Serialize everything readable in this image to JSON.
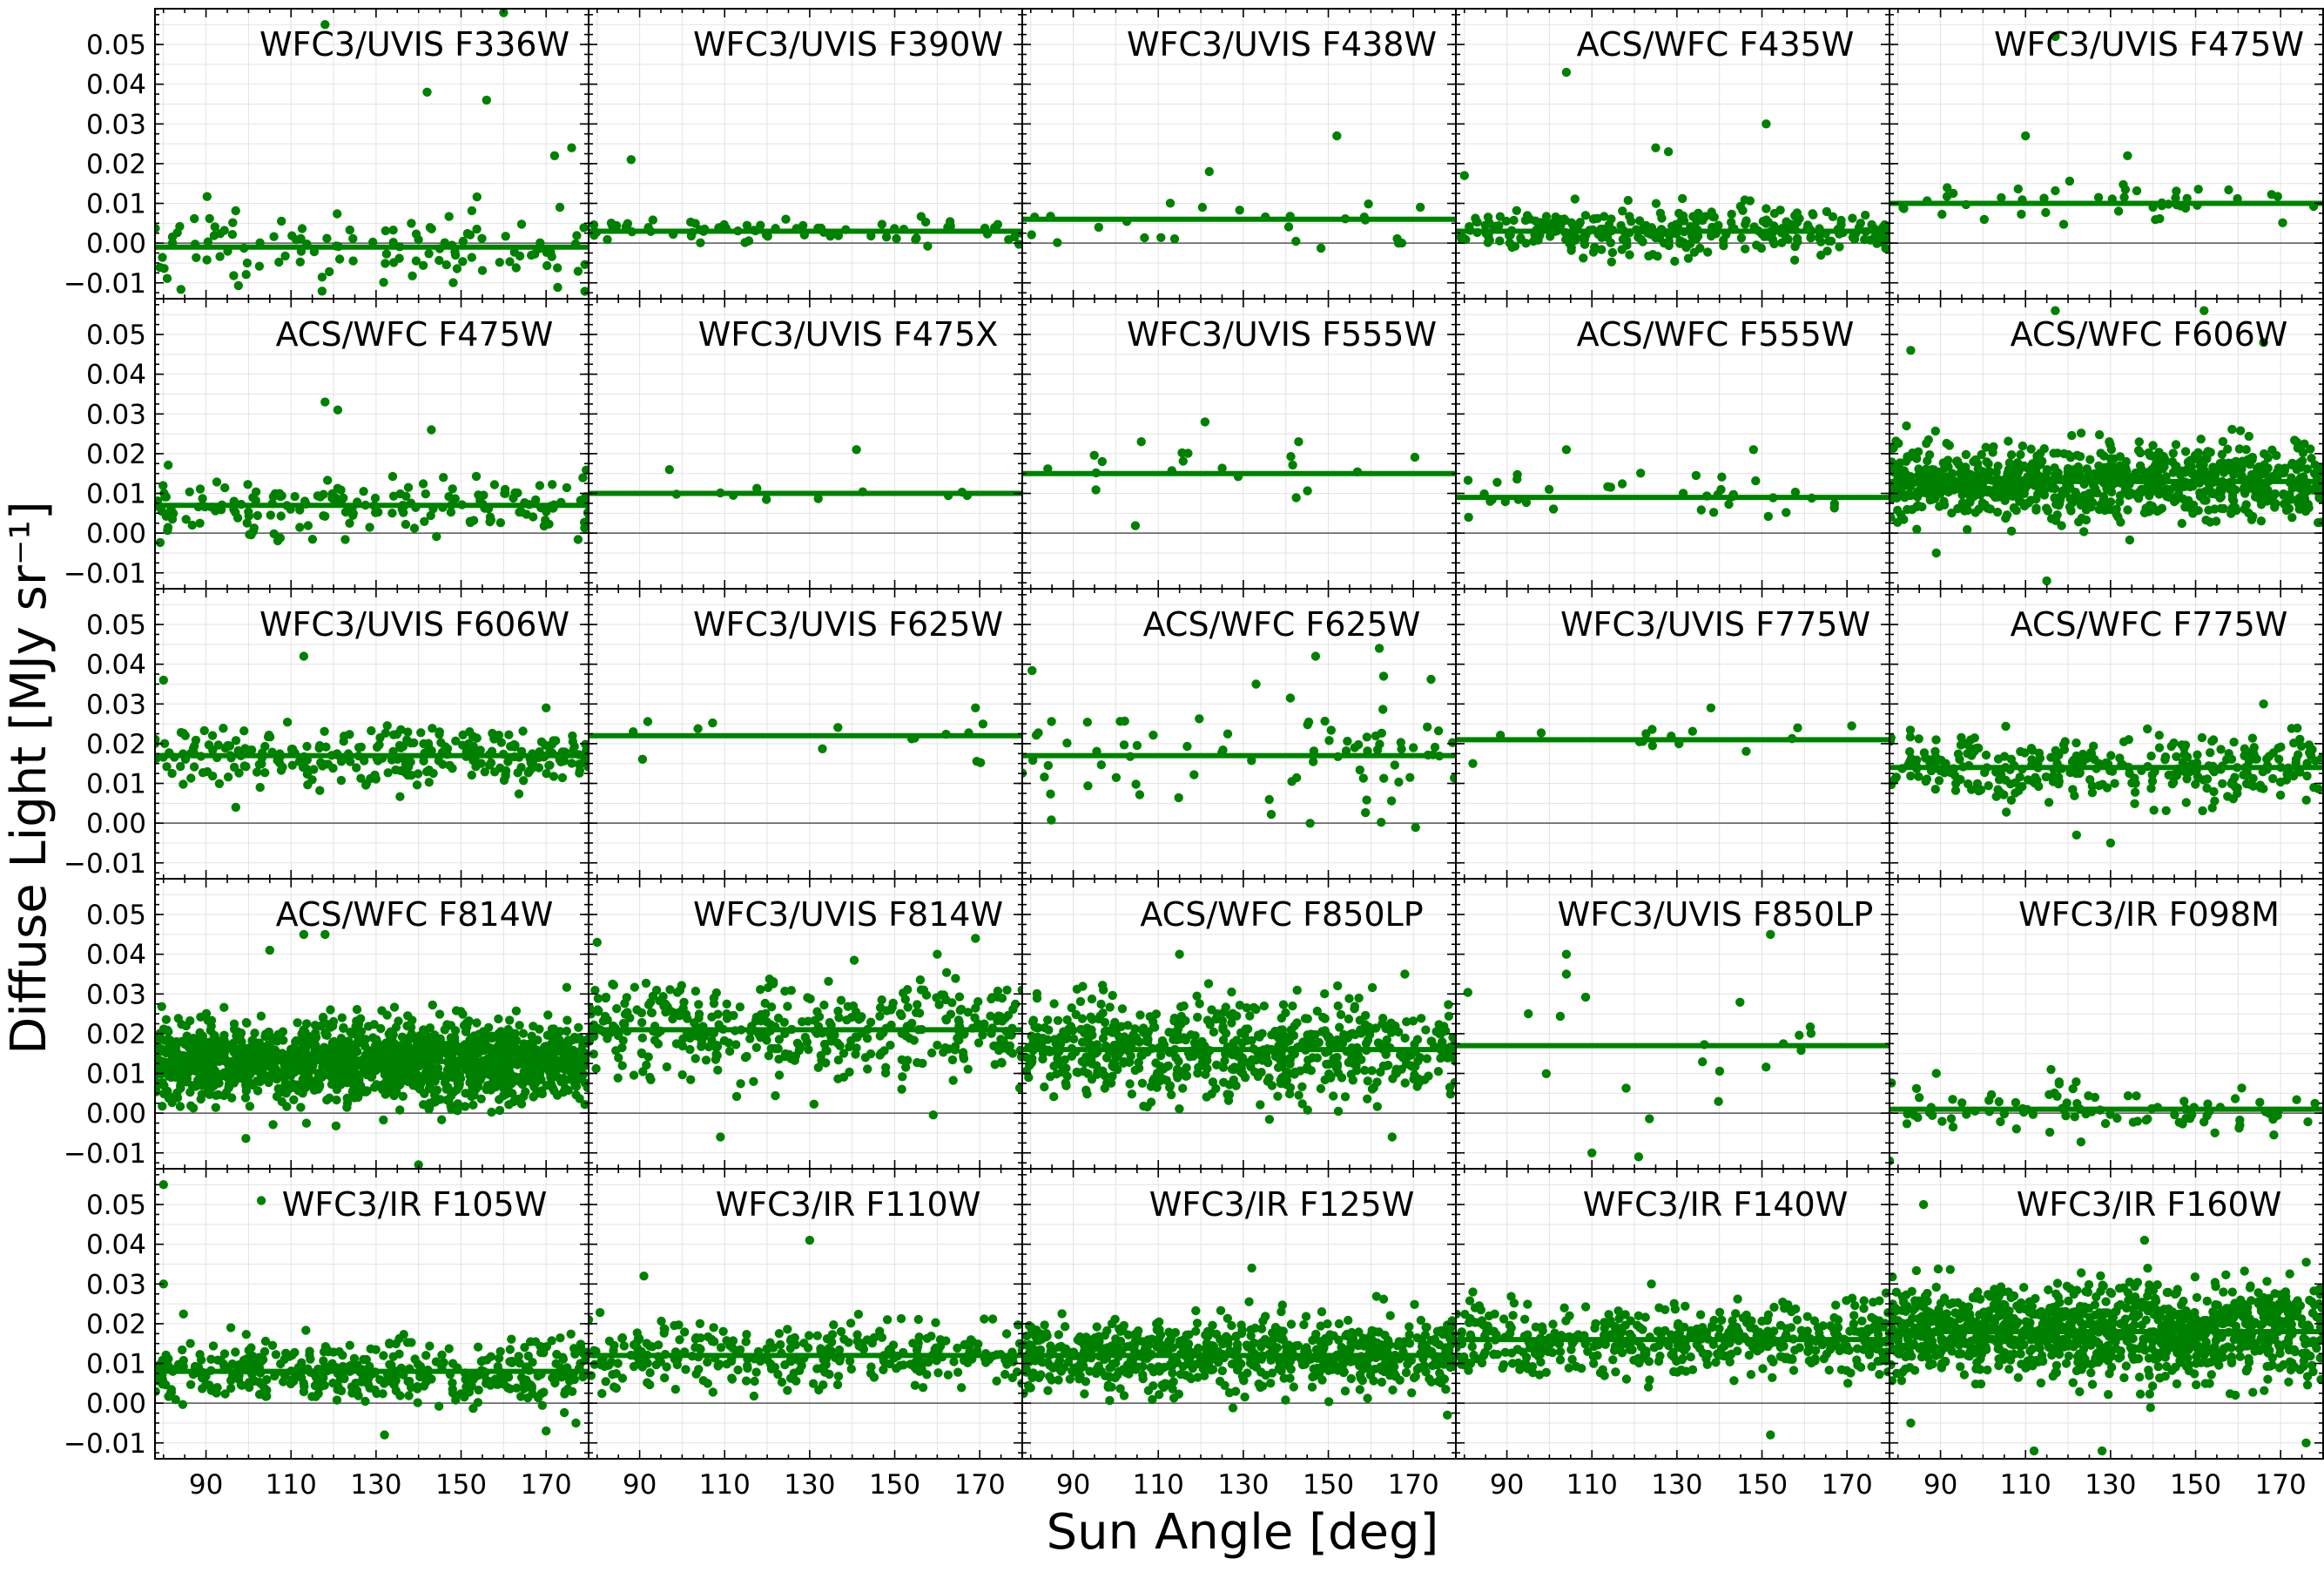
{
  "figure": {
    "xlabel": "Sun Angle [deg]",
    "ylabel": "Diffuse Light [MJy sr⁻¹]"
  },
  "style": {
    "point_color": "#008000",
    "line_color": "#008000",
    "zero_line_color": "#555555",
    "grid_color": "#e3e3e3"
  },
  "chart_data": {
    "type": "scatter",
    "layout": "5x5 grid of panels with shared axes",
    "x_axis": {
      "range": [
        78,
        180
      ],
      "ticks": [
        90,
        110,
        130,
        150,
        170
      ]
    },
    "y_axis": {
      "range": [
        -0.014,
        0.059
      ],
      "ticks": [
        -0.01,
        0.0,
        0.01,
        0.02,
        0.03,
        0.04,
        0.05
      ],
      "tick_labels": [
        "−0.01",
        "0.00",
        "0.01",
        "0.02",
        "0.03",
        "0.04",
        "0.05"
      ]
    },
    "grid": true,
    "zero_line": true,
    "panels": [
      {
        "title": "WFC3/UVIS F336W",
        "fit_level": -0.001,
        "n_points": 120,
        "scatter": 0.005,
        "outliers": [
          [
            118,
            0.055
          ],
          [
            142,
            0.038
          ],
          [
            156,
            0.036
          ],
          [
            160,
            0.058
          ],
          [
            176,
            0.024
          ],
          [
            172,
            0.022
          ]
        ]
      },
      {
        "title": "WFC3/UVIS F390W",
        "fit_level": 0.003,
        "n_points": 70,
        "scatter": 0.0018,
        "outliers": [
          [
            88,
            0.021
          ]
        ]
      },
      {
        "title": "WFC3/UVIS F438W",
        "fit_level": 0.006,
        "n_points": 25,
        "scatter": 0.004,
        "outliers": [
          [
            152,
            0.027
          ],
          [
            122,
            0.018
          ]
        ]
      },
      {
        "title": "ACS/WFC F435W",
        "fit_level": 0.003,
        "n_points": 300,
        "scatter": 0.003,
        "outliers": [
          [
            104,
            0.043
          ],
          [
            151,
            0.03
          ],
          [
            125,
            0.024
          ],
          [
            128,
            0.023
          ],
          [
            80,
            0.017
          ]
        ]
      },
      {
        "title": "WFC3/UVIS F475W",
        "fit_level": 0.01,
        "n_points": 45,
        "scatter": 0.003,
        "outliers": [
          [
            117,
            0.052
          ],
          [
            110,
            0.027
          ],
          [
            134,
            0.022
          ]
        ]
      },
      {
        "title": "ACS/WFC F475W",
        "fit_level": 0.007,
        "n_points": 180,
        "scatter": 0.004,
        "outliers": [
          [
            118,
            0.033
          ],
          [
            121,
            0.031
          ],
          [
            143,
            0.026
          ]
        ]
      },
      {
        "title": "WFC3/UVIS F475X",
        "fit_level": 0.01,
        "n_points": 10,
        "scatter": 0.002,
        "outliers": [
          [
            141,
            0.021
          ],
          [
            97,
            0.016
          ]
        ]
      },
      {
        "title": "WFC3/UVIS F555W",
        "fit_level": 0.015,
        "n_points": 18,
        "scatter": 0.004,
        "outliers": [
          [
            121,
            0.028
          ],
          [
            106,
            0.023
          ],
          [
            143,
            0.023
          ]
        ]
      },
      {
        "title": "ACS/WFC F555W",
        "fit_level": 0.009,
        "n_points": 35,
        "scatter": 0.003,
        "outliers": [
          [
            148,
            0.021
          ],
          [
            104,
            0.021
          ],
          [
            81,
            0.004
          ]
        ]
      },
      {
        "title": "ACS/WFC F606W",
        "fit_level": 0.013,
        "n_points": 900,
        "scatter": 0.0045,
        "outliers": [
          [
            83,
            0.046
          ],
          [
            117,
            0.056
          ],
          [
            152,
            0.056
          ],
          [
            166,
            0.048
          ],
          [
            89,
            -0.005
          ],
          [
            115,
            -0.012
          ],
          [
            82,
            0.027
          ]
        ]
      },
      {
        "title": "WFC3/UVIS F606W",
        "fit_level": 0.017,
        "n_points": 280,
        "scatter": 0.0035,
        "outliers": [
          [
            80,
            0.036
          ],
          [
            113,
            0.042
          ],
          [
            97,
            0.004
          ],
          [
            170,
            0.029
          ]
        ]
      },
      {
        "title": "WFC3/UVIS F625W",
        "fit_level": 0.022,
        "n_points": 14,
        "scatter": 0.003,
        "outliers": [
          [
            169,
            0.029
          ]
        ]
      },
      {
        "title": "ACS/WFC F625W",
        "fit_level": 0.017,
        "n_points": 80,
        "scatter": 0.007,
        "outliers": [
          [
            147,
            0.042
          ],
          [
            162,
            0.044
          ],
          [
            133,
            0.035
          ],
          [
            163,
            0.037
          ]
        ]
      },
      {
        "title": "WFC3/UVIS F775W",
        "fit_level": 0.021,
        "n_points": 14,
        "scatter": 0.004,
        "outliers": [
          [
            138,
            0.029
          ],
          [
            82,
            0.015
          ]
        ]
      },
      {
        "title": "ACS/WFC F775W",
        "fit_level": 0.014,
        "n_points": 330,
        "scatter": 0.004,
        "outliers": [
          [
            166,
            0.03
          ],
          [
            130,
            -0.005
          ],
          [
            122,
            -0.003
          ]
        ]
      },
      {
        "title": "ACS/WFC F814W",
        "fit_level": 0.013,
        "n_points": 1500,
        "scatter": 0.005,
        "outliers": [
          [
            113,
            0.045
          ],
          [
            105,
            0.041
          ],
          [
            118,
            0.045
          ],
          [
            140,
            -0.013
          ],
          [
            118,
            -0.015
          ]
        ]
      },
      {
        "title": "WFC3/UVIS F814W",
        "fit_level": 0.021,
        "n_points": 400,
        "scatter": 0.006,
        "outliers": [
          [
            80,
            0.043
          ],
          [
            169,
            0.044
          ],
          [
            109,
            -0.006
          ],
          [
            160,
            0.04
          ]
        ]
      },
      {
        "title": "ACS/WFC F850LP",
        "fit_level": 0.016,
        "n_points": 650,
        "scatter": 0.006,
        "outliers": [
          [
            168,
            0.035
          ],
          [
            115,
            0.04
          ],
          [
            165,
            -0.006
          ]
        ]
      },
      {
        "title": "WFC3/UVIS F850LP",
        "fit_level": 0.017,
        "n_points": 18,
        "scatter": 0.008,
        "outliers": [
          [
            104,
            0.04
          ],
          [
            104,
            0.035
          ],
          [
            152,
            0.045
          ],
          [
            121,
            -0.011
          ],
          [
            110,
            -0.01
          ]
        ]
      },
      {
        "title": "WFC3/IR F098M",
        "fit_level": 0.001,
        "n_points": 90,
        "scatter": 0.003,
        "outliers": [
          [
            89,
            0.01
          ],
          [
            116,
            0.011
          ],
          [
            78,
            -0.012
          ]
        ]
      },
      {
        "title": "WFC3/IR F105W",
        "fit_level": 0.008,
        "n_points": 420,
        "scatter": 0.004,
        "outliers": [
          [
            80,
            0.055
          ],
          [
            80,
            0.03
          ],
          [
            103,
            0.051
          ],
          [
            177,
            -0.005
          ],
          [
            170,
            -0.007
          ],
          [
            132,
            -0.008
          ]
        ]
      },
      {
        "title": "WFC3/IR F110W",
        "fit_level": 0.012,
        "n_points": 300,
        "scatter": 0.004,
        "outliers": [
          [
            130,
            0.041
          ],
          [
            91,
            0.032
          ],
          [
            78,
            0.021
          ]
        ]
      },
      {
        "title": "WFC3/IR F125W",
        "fit_level": 0.012,
        "n_points": 700,
        "scatter": 0.0045,
        "outliers": [
          [
            132,
            0.034
          ],
          [
            178,
            -0.003
          ]
        ]
      },
      {
        "title": "WFC3/IR F140W",
        "fit_level": 0.016,
        "n_points": 480,
        "scatter": 0.0045,
        "outliers": [
          [
            152,
            -0.008
          ],
          [
            82,
            0.028
          ],
          [
            124,
            0.03
          ]
        ]
      },
      {
        "title": "WFC3/IR F160W",
        "fit_level": 0.018,
        "n_points": 1100,
        "scatter": 0.006,
        "outliers": [
          [
            86,
            0.05
          ],
          [
            112,
            -0.012
          ],
          [
            128,
            -0.012
          ],
          [
            176,
            -0.01
          ],
          [
            83,
            -0.005
          ],
          [
            138,
            0.041
          ]
        ]
      }
    ]
  }
}
